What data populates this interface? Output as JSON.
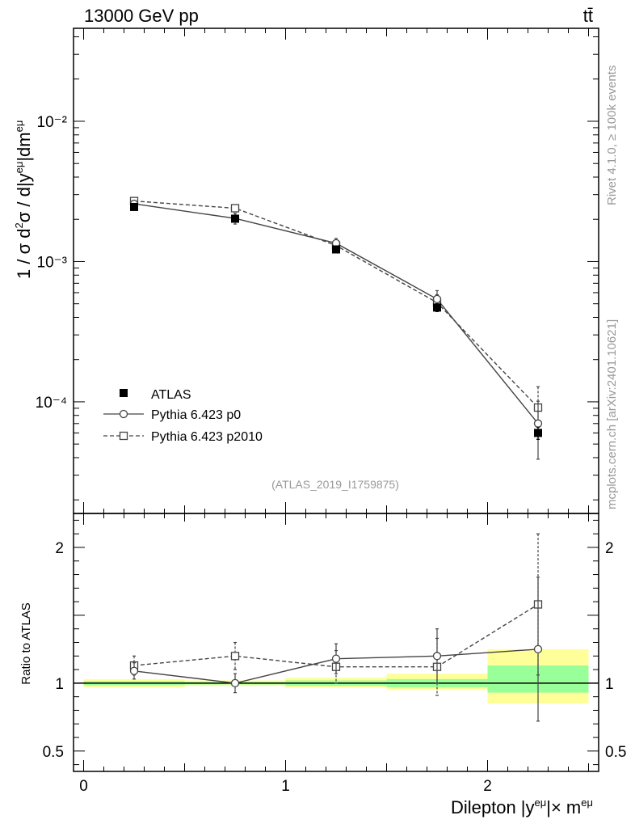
{
  "header": {
    "energy_label": "13000 GeV pp",
    "process_label": "tt̄"
  },
  "side_labels": {
    "rivet": "Rivet 4.1.0, ≥ 100k events",
    "source": "mcplots.cern.ch [arXiv:2401.10621]"
  },
  "analysis_id": "(ATLAS_2019_I1759875)",
  "colors": {
    "data": "#000000",
    "p0": "#444444",
    "p2010": "#444444",
    "band_inner": "#99ff99",
    "band_outer": "#ffff99",
    "watermark": "#999999"
  },
  "chart_data": [
    {
      "type": "line",
      "title": "",
      "xlabel": "Dilepton |y^eμ|× m^eμ",
      "ylabel": "1 / σ  d²σ / d|y^eμ|dm^eμ",
      "yscale": "log",
      "xlim": [
        -0.05,
        2.55
      ],
      "ylim": [
        1.6e-05,
        0.046
      ],
      "y_tick_labels": [
        "10⁻⁴",
        "10⁻³",
        "10⁻²"
      ],
      "y_tick_values": [
        0.0001,
        0.001,
        0.01
      ],
      "x_bin_edges": [
        0,
        0.5,
        1,
        1.5,
        2,
        2.5
      ],
      "x": [
        0.25,
        0.75,
        1.25,
        1.75,
        2.25
      ],
      "legend": {
        "placement": "left",
        "entries": [
          "ATLAS",
          "Pythia 6.423 p0",
          "Pythia 6.423 p2010"
        ]
      },
      "series": [
        {
          "name": "ATLAS",
          "style": "filled-square",
          "values": [
            0.00245,
            0.00202,
            0.00122,
            0.00047,
            6e-05
          ],
          "errors": [
            0.00012,
            0.0001,
            6e-05,
            3e-05,
            6e-06
          ]
        },
        {
          "name": "Pythia 6.423 p0",
          "style": "solid-circle",
          "values": [
            0.00258,
            0.00203,
            0.00135,
            0.00054,
            7e-05
          ],
          "errors": [
            8e-05,
            0.00018,
            0.00011,
            8e-05,
            3.1e-05
          ]
        },
        {
          "name": "Pythia 6.423 p2010",
          "style": "dashed-square",
          "values": [
            0.0027,
            0.0024,
            0.0013,
            0.00051,
            9.1e-05
          ],
          "errors": [
            0.0001,
            0.00012,
            0.0001,
            7e-05,
            3.7e-05
          ]
        }
      ]
    },
    {
      "type": "line",
      "title": "",
      "xlabel": "Dilepton |y^eμ|× m^eμ",
      "ylabel": "Ratio to ATLAS",
      "xlim": [
        -0.05,
        2.55
      ],
      "ylim": [
        0.35,
        2.25
      ],
      "x_tick_labels": [
        "0",
        "1",
        "2"
      ],
      "x_tick_values": [
        0,
        1,
        2
      ],
      "y_tick_labels": [
        "0.5",
        "1",
        "2"
      ],
      "y_tick_values": [
        0.5,
        1,
        2
      ],
      "x": [
        0.25,
        0.75,
        1.25,
        1.75,
        2.25
      ],
      "bands": {
        "edges": [
          0,
          0.5,
          1,
          1.5,
          2,
          2.5
        ],
        "inner": [
          [
            0.985,
            1.015
          ],
          [
            0.99,
            1.01
          ],
          [
            0.98,
            1.02
          ],
          [
            0.97,
            1.03
          ],
          [
            0.93,
            1.13
          ]
        ],
        "outer": [
          [
            0.97,
            1.03
          ],
          [
            0.98,
            1.02
          ],
          [
            0.97,
            1.04
          ],
          [
            0.95,
            1.07
          ],
          [
            0.85,
            1.25
          ]
        ]
      },
      "series": [
        {
          "name": "Pythia 6.423 p0",
          "style": "solid-circle",
          "values": [
            1.09,
            1.0,
            1.18,
            1.2,
            1.25
          ],
          "errors": [
            0.06,
            0.07,
            0.11,
            0.2,
            0.53
          ]
        },
        {
          "name": "Pythia 6.423 p2010",
          "style": "dashed-square",
          "values": [
            1.13,
            1.2,
            1.12,
            1.12,
            1.58
          ],
          "errors": [
            0.07,
            0.1,
            0.12,
            0.21,
            0.52
          ]
        }
      ]
    }
  ]
}
